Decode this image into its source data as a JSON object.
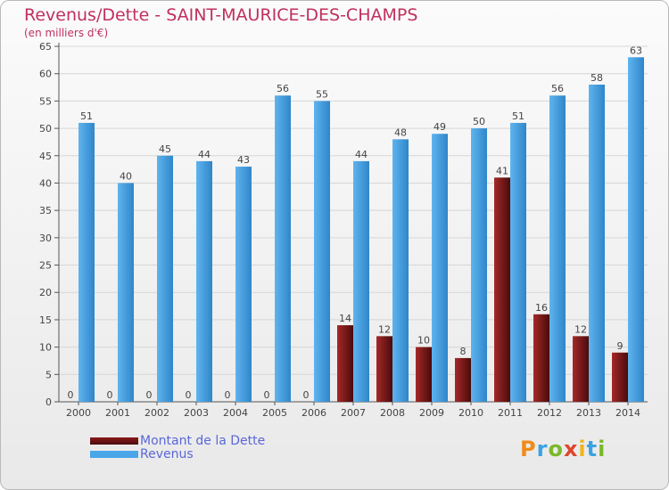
{
  "header": {
    "title": "Revenus/Dette - SAINT-MAURICE-DES-CHAMPS",
    "subtitle": "(en milliers d'€)"
  },
  "legend": {
    "dette_label": "Montant de la Dette",
    "revenus_label": "Revenus"
  },
  "logo": {
    "letters": [
      "P",
      "r",
      "o",
      "x",
      "i",
      "t",
      "i"
    ],
    "colors": [
      "#f08c1a",
      "#3aa3e3",
      "#7ab829",
      "#e0452a",
      "#f0b51a",
      "#3aa3e3",
      "#7ab829"
    ]
  },
  "colors": {
    "dette": "#8b1a1a",
    "revenus": "#4aa6e8"
  },
  "chart_data": {
    "type": "bar",
    "title": "Revenus/Dette - SAINT-MAURICE-DES-CHAMPS",
    "subtitle": "(en milliers d'€)",
    "categories": [
      "2000",
      "2001",
      "2002",
      "2003",
      "2004",
      "2005",
      "2006",
      "2007",
      "2008",
      "2009",
      "2010",
      "2011",
      "2012",
      "2013",
      "2014"
    ],
    "series": [
      {
        "name": "Montant de la Dette",
        "values": [
          0,
          0,
          0,
          0,
          0,
          0,
          0,
          14,
          12,
          10,
          8,
          41,
          16,
          12,
          9
        ]
      },
      {
        "name": "Revenus",
        "values": [
          51,
          40,
          45,
          44,
          43,
          56,
          55,
          44,
          48,
          49,
          50,
          51,
          56,
          58,
          63
        ]
      }
    ],
    "yticks": [
      0,
      5,
      10,
      15,
      20,
      25,
      30,
      35,
      40,
      45,
      50,
      55,
      60,
      65
    ],
    "ylim": [
      0,
      65
    ],
    "grid": true,
    "legend_position": "bottom-left"
  }
}
